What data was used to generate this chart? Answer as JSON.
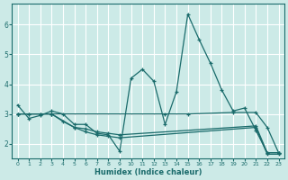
{
  "xlabel": "Humidex (Indice chaleur)",
  "bg_color": "#cceae7",
  "grid_color": "#ffffff",
  "line_color": "#1a6b6b",
  "xlim": [
    -0.5,
    23.5
  ],
  "ylim": [
    1.5,
    6.7
  ],
  "yticks": [
    2,
    3,
    4,
    5,
    6
  ],
  "xticks": [
    0,
    1,
    2,
    3,
    4,
    5,
    6,
    7,
    8,
    9,
    10,
    11,
    12,
    13,
    14,
    15,
    16,
    17,
    18,
    19,
    20,
    21,
    22,
    23
  ],
  "lines": [
    {
      "x": [
        0,
        1,
        2,
        3,
        4,
        5,
        6,
        7,
        8,
        9,
        10,
        11,
        12,
        13,
        14,
        15,
        16,
        17,
        18,
        19,
        20,
        21,
        22,
        23
      ],
      "y": [
        3.3,
        2.85,
        2.95,
        3.1,
        3.0,
        2.65,
        2.65,
        2.35,
        2.3,
        1.75,
        4.2,
        4.5,
        4.1,
        2.65,
        3.75,
        6.35,
        5.5,
        4.7,
        3.8,
        3.1,
        3.2,
        2.45,
        1.7,
        1.7
      ]
    },
    {
      "x": [
        0,
        1,
        2,
        3,
        13,
        15,
        19,
        21,
        22,
        23
      ],
      "y": [
        3.0,
        3.0,
        3.0,
        3.0,
        3.0,
        3.0,
        3.05,
        3.05,
        2.55,
        1.7
      ]
    },
    {
      "x": [
        0,
        1,
        2,
        3,
        4,
        5,
        6,
        7,
        8,
        9,
        21,
        22,
        23
      ],
      "y": [
        3.0,
        3.0,
        3.0,
        3.0,
        2.75,
        2.55,
        2.5,
        2.4,
        2.35,
        2.3,
        2.6,
        1.7,
        1.7
      ]
    },
    {
      "x": [
        0,
        3,
        5,
        6,
        7,
        8,
        9,
        21,
        22,
        23
      ],
      "y": [
        3.0,
        3.0,
        2.55,
        2.4,
        2.3,
        2.25,
        2.2,
        2.55,
        1.65,
        1.65
      ]
    }
  ]
}
